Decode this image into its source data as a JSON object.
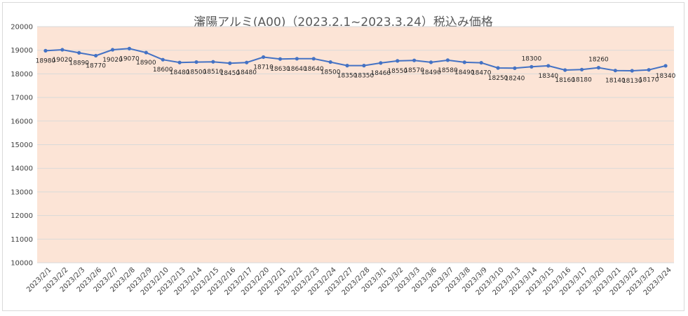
{
  "chart_data": {
    "type": "line",
    "title": "瀋陽アルミ(A00)（2023.2.1~2023.3.24）税込み価格",
    "xlabel": "",
    "ylabel": "",
    "ylim": [
      10000,
      20000
    ],
    "yticks": [
      10000,
      11000,
      12000,
      13000,
      14000,
      15000,
      16000,
      17000,
      18000,
      19000,
      20000
    ],
    "grid": true,
    "legend": "none",
    "colors": {
      "line": "#4472c4",
      "plot_bg": "#fce4d6",
      "grid": "#d9d9d9"
    },
    "categories": [
      "2023/2/1",
      "2023/2/2",
      "2023/2/3",
      "2023/2/6",
      "2023/2/7",
      "2023/2/8",
      "2023/2/9",
      "2023/2/10",
      "2023/2/13",
      "2023/2/14",
      "2023/2/15",
      "2023/2/16",
      "2023/2/17",
      "2023/2/20",
      "2023/2/21",
      "2023/2/22",
      "2023/2/23",
      "2023/2/24",
      "2023/2/27",
      "2023/2/28",
      "2023/3/1",
      "2023/3/2",
      "2023/3/3",
      "2023/3/6",
      "2023/3/7",
      "2023/3/8",
      "2023/3/9",
      "2023/3/10",
      "2023/3/13",
      "2023/3/14",
      "2023/3/15",
      "2023/3/16",
      "2023/3/17",
      "2023/3/20",
      "2023/3/21",
      "2023/3/22",
      "2023/3/23",
      "2023/3/24"
    ],
    "values": [
      18980,
      19020,
      18890,
      18770,
      19020,
      19070,
      18900,
      18600,
      18480,
      18500,
      18510,
      18450,
      18480,
      18710,
      18630,
      18640,
      18640,
      18500,
      18350,
      18350,
      18460,
      18550,
      18570,
      18490,
      18580,
      18490,
      18470,
      18250,
      18240,
      18300,
      18340,
      18160,
      18180,
      18260,
      18140,
      18130,
      18170,
      18340
    ],
    "labels": [
      "18980",
      "19020",
      "18890",
      "18770",
      "19020",
      "19070",
      "18900",
      "18600",
      "18480",
      "18500",
      "18510",
      "18450",
      "18480",
      "18710",
      "18630",
      "18640",
      "18640",
      "18500",
      "18350",
      "18350",
      "18460",
      "18550",
      "18570",
      "18490",
      "18580",
      "18490",
      "18470",
      "18250",
      "18240",
      "18300",
      "18340",
      "18160",
      "18180",
      "18260",
      "18140",
      "18130",
      "18170",
      "18340"
    ]
  }
}
